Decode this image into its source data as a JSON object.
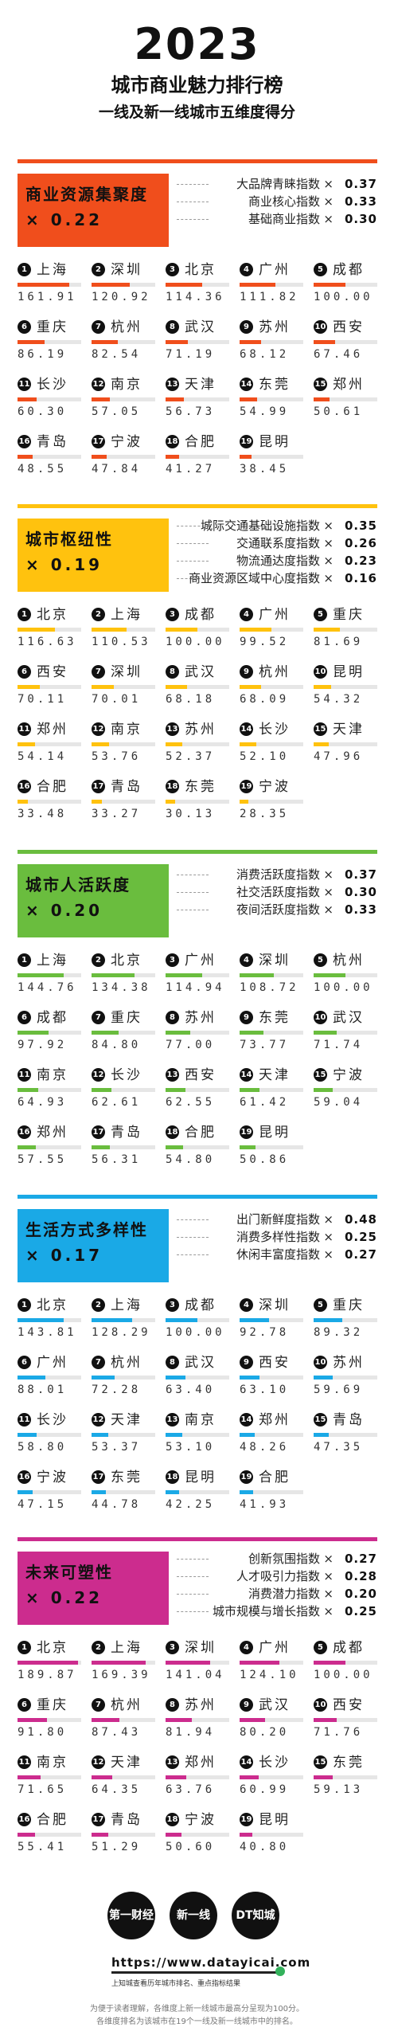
{
  "header": {
    "year": "2023",
    "title": "城市商业魅力排行榜",
    "subtitle": "一线及新一线城市五维度得分"
  },
  "chart_data": [
    {
      "type": "bar",
      "title": "商业资源集聚度",
      "weight": "0.22",
      "color": "#f04e1c",
      "text_color": "#111111",
      "metrics": [
        {
          "name": "大品牌青睐指数",
          "weight": "0.37"
        },
        {
          "name": "商业核心指数",
          "weight": "0.33"
        },
        {
          "name": "基础商业指数",
          "weight": "0.30"
        }
      ],
      "categories": [
        "上海",
        "深圳",
        "北京",
        "广州",
        "成都",
        "重庆",
        "杭州",
        "武汉",
        "苏州",
        "西安",
        "长沙",
        "南京",
        "天津",
        "东莞",
        "郑州",
        "青岛",
        "宁波",
        "合肥",
        "昆明"
      ],
      "values": [
        161.91,
        120.92,
        114.36,
        111.82,
        100.0,
        86.19,
        82.54,
        71.19,
        68.12,
        67.46,
        60.3,
        57.05,
        56.73,
        54.99,
        50.61,
        48.55,
        47.84,
        41.27,
        38.45
      ],
      "labels": [
        "161.91",
        "120.92",
        "114.36",
        "111.82",
        "100.00",
        "86.19",
        "82.54",
        "71.19",
        "68.12",
        "67.46",
        "60.30",
        "57.05",
        "56.73",
        "54.99",
        "50.61",
        "48.55",
        "47.84",
        "41.27",
        "38.45"
      ]
    },
    {
      "type": "bar",
      "title": "城市枢纽性",
      "weight": "0.19",
      "color": "#ffc20e",
      "text_color": "#111111",
      "metrics": [
        {
          "name": "城际交通基础设施指数",
          "weight": "0.35"
        },
        {
          "name": "交通联系度指数",
          "weight": "0.26"
        },
        {
          "name": "物流通达度指数",
          "weight": "0.23"
        },
        {
          "name": "商业资源区域中心度指数",
          "weight": "0.16"
        }
      ],
      "categories": [
        "北京",
        "上海",
        "成都",
        "广州",
        "重庆",
        "西安",
        "深圳",
        "武汉",
        "杭州",
        "昆明",
        "郑州",
        "南京",
        "苏州",
        "长沙",
        "天津",
        "合肥",
        "青岛",
        "东莞",
        "宁波"
      ],
      "values": [
        116.63,
        110.53,
        100.0,
        99.52,
        81.69,
        70.11,
        70.01,
        68.18,
        68.09,
        54.32,
        54.14,
        53.76,
        52.37,
        52.1,
        47.96,
        33.48,
        33.27,
        30.13,
        28.35
      ],
      "labels": [
        "116.63",
        "110.53",
        "100.00",
        "99.52",
        "81.69",
        "70.11",
        "70.01",
        "68.18",
        "68.09",
        "54.32",
        "54.14",
        "53.76",
        "52.37",
        "52.10",
        "47.96",
        "33.48",
        "33.27",
        "30.13",
        "28.35"
      ]
    },
    {
      "type": "bar",
      "title": "城市人活跃度",
      "weight": "0.20",
      "color": "#6abd3e",
      "text_color": "#111111",
      "metrics": [
        {
          "name": "消费活跃度指数",
          "weight": "0.37"
        },
        {
          "name": "社交活跃度指数",
          "weight": "0.30"
        },
        {
          "name": "夜间活跃度指数",
          "weight": "0.33"
        }
      ],
      "categories": [
        "上海",
        "北京",
        "广州",
        "深圳",
        "杭州",
        "成都",
        "重庆",
        "苏州",
        "东莞",
        "武汉",
        "南京",
        "长沙",
        "西安",
        "天津",
        "宁波",
        "郑州",
        "青岛",
        "合肥",
        "昆明"
      ],
      "values": [
        144.76,
        134.38,
        114.94,
        108.72,
        100.0,
        97.92,
        84.8,
        77.0,
        73.77,
        71.74,
        64.93,
        62.61,
        62.55,
        61.42,
        59.04,
        57.55,
        56.31,
        54.8,
        50.86
      ],
      "labels": [
        "144.76",
        "134.38",
        "114.94",
        "108.72",
        "100.00",
        "97.92",
        "84.80",
        "77.00",
        "73.77",
        "71.74",
        "64.93",
        "62.61",
        "62.55",
        "61.42",
        "59.04",
        "57.55",
        "56.31",
        "54.80",
        "50.86"
      ]
    },
    {
      "type": "bar",
      "title": "生活方式多样性",
      "weight": "0.17",
      "color": "#1aa9e6",
      "text_color": "#111111",
      "metrics": [
        {
          "name": "出门新鲜度指数",
          "weight": "0.48"
        },
        {
          "name": "消费多样性指数",
          "weight": "0.25"
        },
        {
          "name": "休闲丰富度指数",
          "weight": "0.27"
        }
      ],
      "categories": [
        "北京",
        "上海",
        "成都",
        "深圳",
        "重庆",
        "广州",
        "杭州",
        "武汉",
        "西安",
        "苏州",
        "长沙",
        "天津",
        "南京",
        "郑州",
        "青岛",
        "宁波",
        "东莞",
        "昆明",
        "合肥"
      ],
      "values": [
        143.81,
        128.29,
        100.0,
        92.78,
        89.32,
        88.01,
        72.28,
        63.4,
        63.1,
        59.69,
        58.8,
        53.37,
        53.1,
        48.26,
        47.35,
        47.15,
        44.78,
        42.25,
        41.93
      ],
      "labels": [
        "143.81",
        "128.29",
        "100.00",
        "92.78",
        "89.32",
        "88.01",
        "72.28",
        "63.40",
        "63.10",
        "59.69",
        "58.80",
        "53.37",
        "53.10",
        "48.26",
        "47.35",
        "47.15",
        "44.78",
        "42.25",
        "41.93"
      ]
    },
    {
      "type": "bar",
      "title": "未来可塑性",
      "weight": "0.22",
      "color": "#cc2c8e",
      "text_color": "#111111",
      "metrics": [
        {
          "name": "创新氛围指数",
          "weight": "0.27"
        },
        {
          "name": "人才吸引力指数",
          "weight": "0.28"
        },
        {
          "name": "消费潜力指数",
          "weight": "0.20"
        },
        {
          "name": "城市规模与增长指数",
          "weight": "0.25"
        }
      ],
      "categories": [
        "北京",
        "上海",
        "深圳",
        "广州",
        "成都",
        "重庆",
        "杭州",
        "苏州",
        "武汉",
        "西安",
        "南京",
        "天津",
        "郑州",
        "长沙",
        "东莞",
        "合肥",
        "青岛",
        "宁波",
        "昆明"
      ],
      "values": [
        189.87,
        169.39,
        141.04,
        124.1,
        100.0,
        91.8,
        87.43,
        81.94,
        80.2,
        71.76,
        71.65,
        64.35,
        63.76,
        60.99,
        59.13,
        55.41,
        51.29,
        50.6,
        40.8
      ],
      "labels": [
        "189.87",
        "169.39",
        "141.04",
        "124.10",
        "100.00",
        "91.80",
        "87.43",
        "81.94",
        "80.20",
        "71.76",
        "71.65",
        "64.35",
        "63.76",
        "60.99",
        "59.13",
        "55.41",
        "51.29",
        "50.60",
        "40.80"
      ]
    }
  ],
  "footer": {
    "logos": [
      "第一财经",
      "新一线",
      "DT知城"
    ],
    "url": "https://www.datayicai.com",
    "source_note": "上知城查看历年城市排名、重点指标结果",
    "note_line1": "为便于读者理解，各维度上新一线城市最高分呈现为100分。",
    "note_line2": "各维度排名为该城市在19个一线及新一线城市中的排名。"
  }
}
